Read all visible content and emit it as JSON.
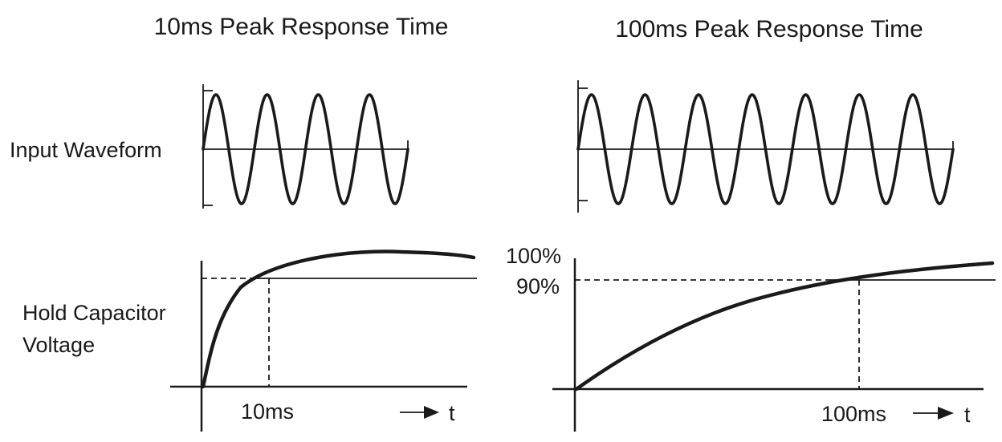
{
  "left_panel": {
    "title": "10ms Peak Response Time",
    "input_label": "Input Waveform",
    "hold_label_line1": "Hold Capacitor",
    "hold_label_line2": "Voltage",
    "time_label": "10ms",
    "axis_label": "t",
    "wave_cycles": 4
  },
  "right_panel": {
    "title": "100ms Peak Response Time",
    "level_100": "100%",
    "level_90": "90%",
    "time_label": "100ms",
    "axis_label": "t",
    "wave_cycles": 7
  }
}
